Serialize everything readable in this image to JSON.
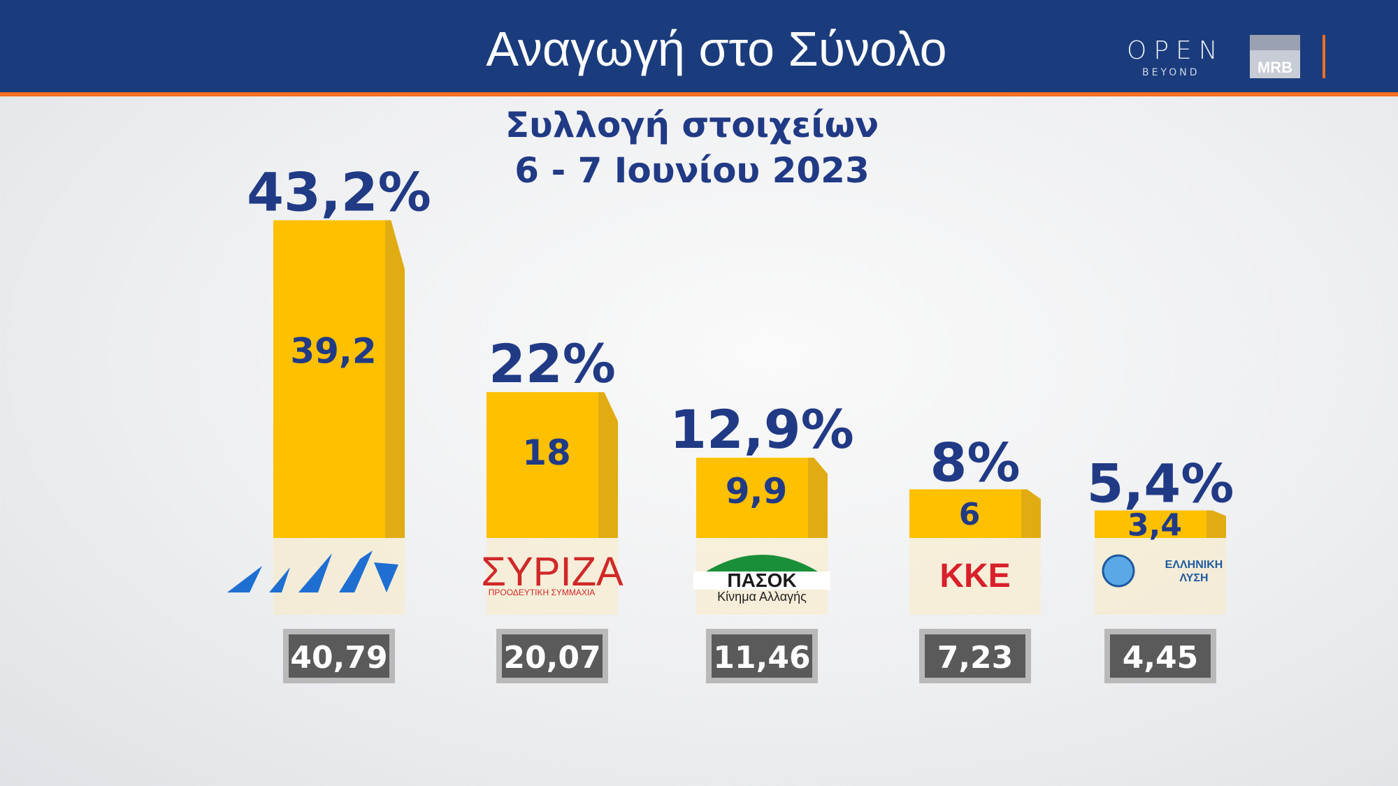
{
  "header": {
    "title": "Αναγωγή στο Σύνολο",
    "logo_open": "OPEN",
    "logo_open_sub": "BEYOND",
    "logo_mrb": "MRB"
  },
  "subtitle": {
    "line1": "Συλλογή στοιχείων",
    "line2": "6 - 7 Ιουνίου 2023"
  },
  "colors": {
    "bar": "#ffc000",
    "bar_side": "#e0ac12",
    "text": "#213a85",
    "box": "#5a5a5a"
  },
  "chart_data": {
    "type": "bar",
    "categories": [
      "ΝΔ",
      "ΣΥΡΙΖΑ",
      "ΠΑΣΟΚ",
      "ΚΚΕ",
      "ΕΛΛΗΝΙΚΗ ΛΥΣΗ"
    ],
    "series": [
      {
        "values": [
          39.2,
          18,
          9.9,
          6,
          3.4
        ]
      },
      {
        "values": [
          43.2,
          22,
          12.9,
          8,
          5.4
        ]
      },
      {
        "values": [
          40.79,
          20.07,
          11.46,
          7.23,
          4.45
        ]
      }
    ],
    "bar_labels": [
      "39,2",
      "18",
      "9,9",
      "6",
      "3,4"
    ],
    "top_labels": [
      "43,2%",
      "22%",
      "12,9%",
      "8%",
      "5,4%"
    ],
    "box_labels": [
      "40,79",
      "20,07",
      "11,46",
      "7,23",
      "4,45"
    ],
    "party_logos": [
      {
        "icon": "nd-logo",
        "text": "",
        "subtext": ""
      },
      {
        "icon": "syriza-logo",
        "text": "ΣΥΡΙΖΑ",
        "subtext": "ΠΡΟΟΔΕΥΤΙΚΗ ΣΥΜΜΑΧΙΑ"
      },
      {
        "icon": "pasok-logo",
        "text": "ΠΑΣΟΚ",
        "subtext": "Κίνημα Αλλαγής"
      },
      {
        "icon": "kke-logo",
        "text": "ΚΚΕ",
        "subtext": ""
      },
      {
        "icon": "elliniki-lysi-logo",
        "text": "ΕΛΛΗΝΙΚΗ",
        "subtext": "ΛΥΣΗ"
      }
    ]
  }
}
